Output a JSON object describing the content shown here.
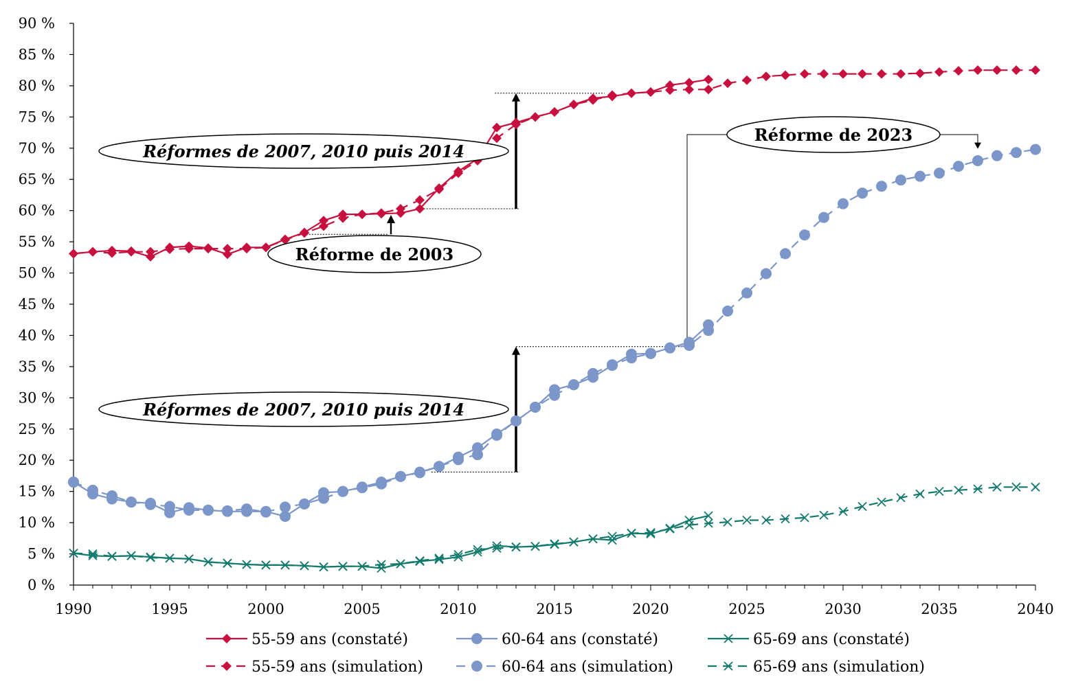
{
  "chart_data": {
    "type": "line",
    "xlim": [
      1990,
      2040
    ],
    "ylim": [
      0,
      90
    ],
    "y_ticks": [
      "0 %",
      "5 %",
      "10 %",
      "15 %",
      "20 %",
      "25 %",
      "30 %",
      "35 %",
      "40 %",
      "45 %",
      "50 %",
      "55 %",
      "60 %",
      "65 %",
      "70 %",
      "75 %",
      "80 %",
      "85 %",
      "90 %"
    ],
    "x_ticks": [
      "1990",
      "1995",
      "2000",
      "2005",
      "2010",
      "2015",
      "2020",
      "2025",
      "2030",
      "2035",
      "2040"
    ],
    "grid": false,
    "legend_position": "bottom",
    "annotations": {
      "reform_2007_top": "Réformes de 2007, 2010 puis 2014",
      "reform_2003": "Réforme de 2003",
      "reform_2023": "Réforme de 2023",
      "reform_2007_bottom": "Réformes de 2007, 2010 puis 2014"
    },
    "series": [
      {
        "name": "55-59 ans (constaté)",
        "color": "#c8103e",
        "dash": false,
        "marker": "diamond",
        "x": [
          1990,
          1991,
          1992,
          1993,
          1994,
          1995,
          1996,
          1997,
          1998,
          1999,
          2000,
          2001,
          2002,
          2003,
          2004,
          2005,
          2006,
          2007,
          2008,
          2009,
          2010,
          2011,
          2012,
          2013,
          2014,
          2015,
          2016,
          2017,
          2018,
          2019,
          2020,
          2021,
          2022,
          2023
        ],
        "y": [
          53.1,
          53.4,
          53.6,
          53.5,
          52.6,
          54.1,
          54.3,
          54.0,
          53.0,
          54.1,
          54.1,
          55.4,
          56.5,
          58.4,
          59.4,
          59.4,
          59.5,
          59.6,
          60.3,
          63.6,
          66.3,
          68.3,
          73.3,
          74.1,
          75.0,
          75.8,
          77.0,
          78.0,
          78.3,
          78.8,
          79.0,
          80.1,
          80.5,
          81.0
        ]
      },
      {
        "name": "55-59 ans (simulation)",
        "color": "#c8103e",
        "dash": true,
        "marker": "diamond",
        "x": [
          1990,
          1991,
          1992,
          1993,
          1994,
          1995,
          1996,
          1997,
          1998,
          1999,
          2000,
          2001,
          2002,
          2003,
          2004,
          2005,
          2006,
          2007,
          2008,
          2009,
          2010,
          2011,
          2012,
          2013,
          2014,
          2015,
          2016,
          2017,
          2018,
          2019,
          2020,
          2021,
          2022,
          2023,
          2024,
          2025,
          2026,
          2027,
          2028,
          2029,
          2030,
          2031,
          2032,
          2033,
          2034,
          2035,
          2036,
          2037,
          2038,
          2039,
          2040
        ],
        "y": [
          53.1,
          53.4,
          53.2,
          53.4,
          53.4,
          53.8,
          53.9,
          53.9,
          53.9,
          53.9,
          54.1,
          55.3,
          56.4,
          57.5,
          58.8,
          59.4,
          59.6,
          60.3,
          61.7,
          63.4,
          66.0,
          68.0,
          71.6,
          73.8,
          75.0,
          75.8,
          77.0,
          77.7,
          78.5,
          78.8,
          79.0,
          79.3,
          79.4,
          79.4,
          80.4,
          80.9,
          81.5,
          81.7,
          81.9,
          81.9,
          81.9,
          81.9,
          81.9,
          81.9,
          82.0,
          82.2,
          82.4,
          82.5,
          82.5,
          82.5,
          82.5
        ]
      },
      {
        "name": "60-64 ans (constaté)",
        "color": "#7b96c8",
        "dash": false,
        "marker": "circle",
        "x": [
          1990,
          1991,
          1992,
          1993,
          1994,
          1995,
          1996,
          1997,
          1998,
          1999,
          2000,
          2001,
          2002,
          2003,
          2004,
          2005,
          2006,
          2007,
          2008,
          2009,
          2010,
          2011,
          2012,
          2013,
          2014,
          2015,
          2016,
          2017,
          2018,
          2019,
          2020,
          2021,
          2022,
          2023
        ],
        "y": [
          16.5,
          14.6,
          13.8,
          13.3,
          13.1,
          11.6,
          12.4,
          12.0,
          11.8,
          11.8,
          11.8,
          11.0,
          13.0,
          14.8,
          15.0,
          15.7,
          16.5,
          17.4,
          18.1,
          19.0,
          20.5,
          22.0,
          24.2,
          26.3,
          28.5,
          31.3,
          32.1,
          33.3,
          35.2,
          37.0,
          37.1,
          38.0,
          38.9,
          41.7
        ]
      },
      {
        "name": "60-64 ans (simulation)",
        "color": "#7b96c8",
        "dash": true,
        "marker": "circle",
        "x": [
          1990,
          1991,
          1992,
          1993,
          1994,
          1995,
          1996,
          1997,
          1998,
          1999,
          2000,
          2001,
          2002,
          2003,
          2004,
          2005,
          2006,
          2007,
          2008,
          2009,
          2010,
          2011,
          2012,
          2013,
          2014,
          2015,
          2016,
          2017,
          2018,
          2019,
          2020,
          2021,
          2022,
          2023,
          2024,
          2025,
          2026,
          2027,
          2028,
          2029,
          2030,
          2031,
          2032,
          2033,
          2034,
          2035,
          2036,
          2037,
          2038,
          2039,
          2040
        ],
        "y": [
          16.5,
          15.2,
          14.3,
          13.3,
          12.9,
          12.6,
          12.0,
          12.0,
          11.9,
          12.2,
          11.7,
          12.5,
          13.0,
          13.9,
          15.0,
          15.6,
          16.2,
          17.4,
          18.0,
          19.0,
          20.1,
          20.9,
          24.0,
          26.3,
          28.5,
          30.4,
          32.1,
          33.9,
          35.3,
          36.4,
          37.1,
          38.0,
          38.4,
          40.8,
          43.9,
          46.8,
          49.9,
          53.1,
          56.1,
          58.9,
          61.1,
          62.8,
          63.9,
          64.9,
          65.5,
          66.0,
          67.1,
          68.0,
          68.8,
          69.3,
          69.8
        ]
      },
      {
        "name": "65-69 ans (constaté)",
        "color": "#127a6c",
        "dash": false,
        "marker": "x",
        "x": [
          1990,
          1991,
          1992,
          1993,
          1994,
          1995,
          1996,
          1997,
          1998,
          1999,
          2000,
          2001,
          2002,
          2003,
          2004,
          2005,
          2006,
          2007,
          2008,
          2009,
          2010,
          2011,
          2012,
          2013,
          2014,
          2015,
          2016,
          2017,
          2018,
          2019,
          2020,
          2021,
          2022,
          2023
        ],
        "y": [
          5.1,
          4.7,
          4.6,
          4.7,
          4.5,
          4.3,
          4.2,
          3.7,
          3.5,
          3.3,
          3.2,
          3.2,
          3.1,
          2.9,
          3.0,
          3.0,
          2.7,
          3.4,
          3.8,
          4.1,
          4.5,
          5.3,
          6.3,
          6.1,
          6.2,
          6.5,
          6.9,
          7.4,
          7.2,
          8.3,
          8.2,
          9.1,
          10.4,
          11.1
        ]
      },
      {
        "name": "65-69 ans (simulation)",
        "color": "#127a6c",
        "dash": true,
        "marker": "x",
        "x": [
          1990,
          1991,
          1992,
          1993,
          1994,
          1995,
          1996,
          1997,
          1998,
          1999,
          2000,
          2001,
          2002,
          2003,
          2004,
          2005,
          2006,
          2007,
          2008,
          2009,
          2010,
          2011,
          2012,
          2013,
          2014,
          2015,
          2016,
          2017,
          2018,
          2019,
          2020,
          2021,
          2022,
          2023,
          2024,
          2025,
          2026,
          2027,
          2028,
          2029,
          2030,
          2031,
          2032,
          2033,
          2034,
          2035,
          2036,
          2037,
          2038,
          2039,
          2040
        ],
        "y": [
          5.1,
          5.0,
          4.6,
          4.7,
          4.4,
          4.3,
          4.2,
          3.7,
          3.5,
          3.3,
          3.2,
          3.2,
          3.1,
          2.9,
          3.0,
          3.0,
          3.3,
          3.4,
          3.9,
          4.3,
          4.9,
          5.7,
          5.9,
          6.1,
          6.2,
          6.6,
          6.9,
          7.4,
          7.8,
          8.3,
          8.4,
          9.0,
          9.6,
          9.9,
          10.1,
          10.4,
          10.4,
          10.6,
          10.8,
          11.2,
          11.8,
          12.6,
          13.3,
          14.0,
          14.6,
          15.0,
          15.2,
          15.4,
          15.7,
          15.7,
          15.7
        ]
      }
    ]
  }
}
